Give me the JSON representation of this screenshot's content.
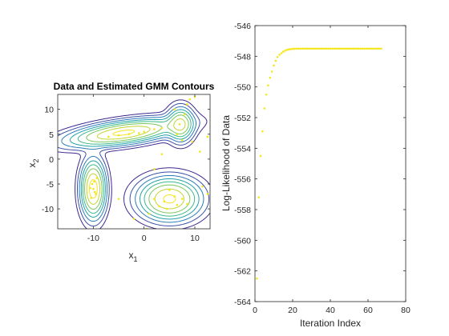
{
  "chart_data": [
    {
      "type": "contour",
      "title": "Data and Estimated GMM Contours",
      "xlabel_main": "x",
      "xlabel_sub": "1",
      "ylabel_main": "x",
      "ylabel_sub": "2",
      "xlim": [
        -17,
        13
      ],
      "ylim": [
        -14,
        13
      ],
      "xticks": [
        -10,
        0,
        10
      ],
      "yticks": [
        10,
        5,
        0,
        -5,
        -10
      ],
      "xtick_labels": [
        "-10",
        "0",
        "10"
      ],
      "ytick_labels": [
        "10",
        "5",
        "0",
        "-5",
        "-10"
      ],
      "grid": false,
      "colors": {
        "levels": [
          "#3d268f",
          "#3a4fa6",
          "#2a7ab8",
          "#1fa0a8",
          "#39b88a",
          "#7ac75b",
          "#c0d530",
          "#f9e31c"
        ],
        "points": "#f5e61c",
        "axes": "#262626"
      },
      "components": [
        {
          "mean": [
            -10,
            -6
          ],
          "sx": 1.3,
          "sy": 3.1,
          "rho": 0,
          "weight": 0.9
        },
        {
          "mean": [
            5,
            -8
          ],
          "sx": 3.3,
          "sy": 2.3,
          "rho": 0,
          "weight": 0.8
        },
        {
          "mean": [
            -4,
            5.3
          ],
          "sx": 6.0,
          "sy": 1.5,
          "rho": 0.55,
          "weight": 0.8
        },
        {
          "mean": [
            7.2,
            7
          ],
          "sx": 1.4,
          "sy": 1.9,
          "rho": 0,
          "weight": 0.55
        }
      ],
      "levels": [
        0.02,
        0.05,
        0.1,
        0.17,
        0.26,
        0.38,
        0.55,
        0.75
      ],
      "points": [
        [
          -10,
          -6
        ],
        [
          -9.5,
          -7
        ],
        [
          -10.2,
          -5
        ],
        [
          -9.8,
          -4.5
        ],
        [
          -10.4,
          -7.8
        ],
        [
          -9.7,
          -6.6
        ],
        [
          -10.6,
          -5.8
        ],
        [
          -9.3,
          -3.8
        ],
        [
          4,
          -8.5
        ],
        [
          6,
          -7.5
        ],
        [
          3,
          -9.5
        ],
        [
          7.5,
          -8
        ],
        [
          5,
          -6.2
        ],
        [
          2,
          -8
        ],
        [
          8.5,
          -9
        ],
        [
          4.5,
          -10
        ],
        [
          6.5,
          -9.2
        ],
        [
          1,
          -11
        ],
        [
          -7,
          4.5
        ],
        [
          -3,
          5
        ],
        [
          0,
          5.5
        ],
        [
          -5,
          4.8
        ],
        [
          2,
          6
        ],
        [
          -1,
          5.2
        ],
        [
          3.5,
          6.2
        ],
        [
          7,
          7
        ],
        [
          8,
          9
        ],
        [
          6.5,
          5
        ],
        [
          9,
          12
        ],
        [
          10,
          12.5
        ],
        [
          8.5,
          11
        ],
        [
          7.5,
          3.8
        ],
        [
          6,
          10
        ],
        [
          9.5,
          3.5
        ],
        [
          11,
          1.5
        ],
        [
          12.5,
          4.5
        ],
        [
          3.5,
          1
        ],
        [
          2,
          -2
        ],
        [
          -5,
          -8
        ],
        [
          11.5,
          -5.5
        ],
        [
          12.5,
          -7
        ],
        [
          -2,
          -12
        ],
        [
          0.5,
          -14
        ]
      ]
    },
    {
      "type": "scatter",
      "title": "",
      "xlabel": "Iteration Index",
      "ylabel": "Log-Likelihood of Data",
      "xlim": [
        0,
        80
      ],
      "ylim": [
        -564,
        -546
      ],
      "xticks": [
        0,
        20,
        40,
        60,
        80
      ],
      "yticks": [
        -546,
        -548,
        -550,
        -552,
        -554,
        -556,
        -558,
        -560,
        -562,
        -564
      ],
      "xtick_labels": [
        "0",
        "20",
        "40",
        "60",
        "80"
      ],
      "ytick_labels": [
        "-546",
        "-548",
        "-550",
        "-552",
        "-554",
        "-556",
        "-558",
        "-560",
        "-562",
        "-564"
      ],
      "grid": false,
      "colors": {
        "points": "#f5e61c",
        "axes": "#262626"
      },
      "x": [
        1,
        2,
        3,
        4,
        5,
        6,
        7,
        8,
        9,
        10,
        11,
        12,
        13,
        14,
        15,
        16,
        17,
        18,
        19,
        20,
        21,
        22,
        23,
        24,
        25,
        26,
        27,
        28,
        29,
        30,
        31,
        32,
        33,
        34,
        35,
        36,
        37,
        38,
        39,
        40,
        41,
        42,
        43,
        44,
        45,
        46,
        47,
        48,
        49,
        50,
        51,
        52,
        53,
        54,
        55,
        56,
        57,
        58,
        59,
        60,
        61,
        62,
        63,
        64,
        65,
        66,
        67
      ],
      "y": [
        -562.5,
        -557.2,
        -554.5,
        -552.9,
        -551.4,
        -550.5,
        -549.9,
        -549.4,
        -549.0,
        -548.6,
        -548.3,
        -548.05,
        -547.9,
        -547.8,
        -547.7,
        -547.63,
        -547.58,
        -547.55,
        -547.53,
        -547.52,
        -547.51,
        -547.5,
        -547.5,
        -547.5,
        -547.5,
        -547.5,
        -547.5,
        -547.5,
        -547.5,
        -547.5,
        -547.5,
        -547.5,
        -547.5,
        -547.5,
        -547.5,
        -547.5,
        -547.5,
        -547.5,
        -547.5,
        -547.5,
        -547.5,
        -547.5,
        -547.5,
        -547.5,
        -547.5,
        -547.5,
        -547.5,
        -547.5,
        -547.5,
        -547.5,
        -547.5,
        -547.5,
        -547.5,
        -547.5,
        -547.5,
        -547.5,
        -547.5,
        -547.5,
        -547.5,
        -547.5,
        -547.5,
        -547.5,
        -547.5,
        -547.5,
        -547.5,
        -547.5,
        -547.5
      ]
    }
  ]
}
